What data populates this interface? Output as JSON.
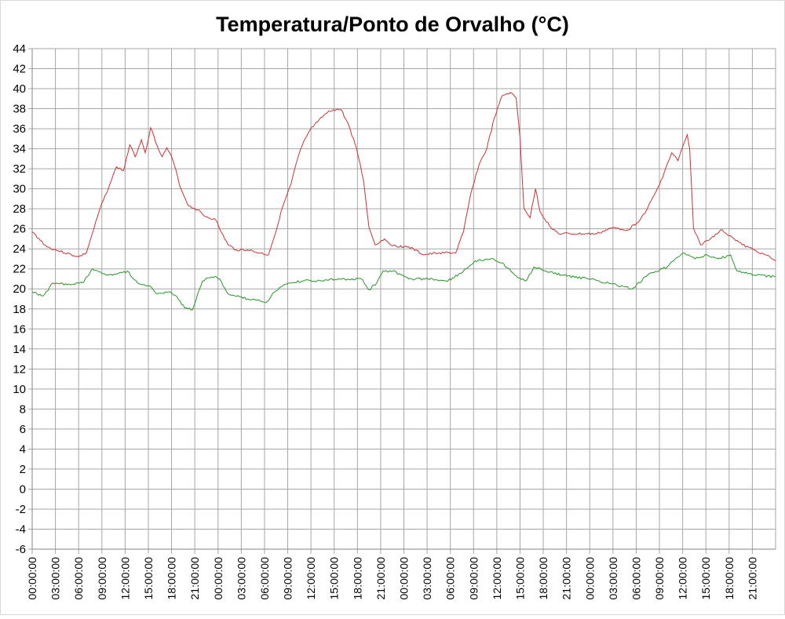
{
  "chart_data": {
    "type": "line",
    "title": "Temperatura/Ponto de Orvalho (°C)",
    "xlabel": "",
    "ylabel": "",
    "ylim": [
      -6,
      44
    ],
    "yticks": [
      "-6",
      "-4",
      "-2",
      "0",
      "2",
      "4",
      "6",
      "8",
      "10",
      "12",
      "14",
      "16",
      "18",
      "20",
      "22",
      "24",
      "26",
      "28",
      "30",
      "32",
      "34",
      "36",
      "38",
      "40",
      "42",
      "44"
    ],
    "xticks": [
      "00:00:00",
      "03:00:00",
      "06:00:00",
      "09:00:00",
      "12:00:00",
      "15:00:00",
      "18:00:00",
      "21:00:00",
      "00:00:00",
      "03:00:00",
      "06:00:00",
      "09:00:00",
      "12:00:00",
      "15:00:00",
      "18:00:00",
      "21:00:00",
      "00:00:00",
      "03:00:00",
      "06:00:00",
      "09:00:00",
      "12:00:00",
      "15:00:00",
      "18:00:00",
      "21:00:00",
      "00:00:00",
      "03:00:00",
      "06:00:00",
      "09:00:00",
      "12:00:00",
      "15:00:00",
      "18:00:00",
      "21:00:00"
    ],
    "xlim": [
      "day 1 00:00",
      "day 5 00:00"
    ],
    "grid": true,
    "legend": "none",
    "series": [
      {
        "color": "#cc3333",
        "points": [
          [
            "1 00:00",
            25.7
          ],
          [
            "1 01:54",
            24.2
          ],
          [
            "1 03:24",
            23.8
          ],
          [
            "1 06:00",
            23.2
          ],
          [
            "1 07:00",
            23.6
          ],
          [
            "1 08:00",
            26.1
          ],
          [
            "1 08:48",
            28.1
          ],
          [
            "1 10:00",
            30.4
          ],
          [
            "1 10:54",
            32.2
          ],
          [
            "1 11:48",
            31.8
          ],
          [
            "1 12:36",
            34.4
          ],
          [
            "1 13:18",
            33.2
          ],
          [
            "1 14:06",
            34.9
          ],
          [
            "1 14:36",
            33.6
          ],
          [
            "1 15:18",
            36.1
          ],
          [
            "1 16:06",
            34.4
          ],
          [
            "1 16:48",
            33.2
          ],
          [
            "1 17:24",
            34.1
          ],
          [
            "1 18:12",
            32.8
          ],
          [
            "1 19:12",
            30.0
          ],
          [
            "1 20:12",
            28.3
          ],
          [
            "1 21:24",
            27.9
          ],
          [
            "1 22:12",
            27.3
          ],
          [
            "1 23:42",
            26.9
          ],
          [
            "2 00:24",
            25.7
          ],
          [
            "2 01:18",
            24.4
          ],
          [
            "2 02:18",
            23.9
          ],
          [
            "2 03:48",
            23.9
          ],
          [
            "2 05:18",
            23.6
          ],
          [
            "2 06:30",
            23.4
          ],
          [
            "2 07:18",
            25.3
          ],
          [
            "2 08:18",
            28.1
          ],
          [
            "2 09:24",
            30.4
          ],
          [
            "2 10:12",
            32.8
          ],
          [
            "2 10:54",
            34.4
          ],
          [
            "2 11:54",
            35.9
          ],
          [
            "2 12:54",
            36.7
          ],
          [
            "2 13:54",
            37.5
          ],
          [
            "2 14:54",
            37.9
          ],
          [
            "2 15:54",
            37.9
          ],
          [
            "2 16:54",
            36.3
          ],
          [
            "2 17:54",
            34.0
          ],
          [
            "2 18:48",
            30.8
          ],
          [
            "2 19:30",
            26.1
          ],
          [
            "2 20:18",
            24.4
          ],
          [
            "2 21:30",
            25.0
          ],
          [
            "2 22:36",
            24.3
          ],
          [
            "3 00:36",
            24.2
          ],
          [
            "3 02:36",
            23.4
          ],
          [
            "3 04:36",
            23.6
          ],
          [
            "3 06:42",
            23.6
          ],
          [
            "3 07:42",
            25.7
          ],
          [
            "3 08:42",
            29.7
          ],
          [
            "3 09:42",
            32.4
          ],
          [
            "3 10:42",
            34.0
          ],
          [
            "3 11:42",
            37.1
          ],
          [
            "3 12:42",
            39.3
          ],
          [
            "3 13:42",
            39.6
          ],
          [
            "3 14:30",
            39.1
          ],
          [
            "3 15:00",
            35.1
          ],
          [
            "3 15:30",
            28.1
          ],
          [
            "3 16:18",
            27.1
          ],
          [
            "3 17:00",
            30.0
          ],
          [
            "3 17:36",
            27.7
          ],
          [
            "3 18:48",
            26.3
          ],
          [
            "3 20:00",
            25.5
          ],
          [
            "3 21:54",
            25.5
          ],
          [
            "4 00:54",
            25.5
          ],
          [
            "4 02:54",
            26.1
          ],
          [
            "4 05:00",
            25.9
          ],
          [
            "4 06:30",
            26.9
          ],
          [
            "4 07:30",
            28.1
          ],
          [
            "4 09:00",
            30.4
          ],
          [
            "4 10:36",
            33.6
          ],
          [
            "4 11:24",
            32.8
          ],
          [
            "4 12:06",
            34.4
          ],
          [
            "4 12:36",
            35.4
          ],
          [
            "4 12:54",
            34.0
          ],
          [
            "4 13:24",
            26.1
          ],
          [
            "4 14:18",
            24.4
          ],
          [
            "4 15:36",
            25.0
          ],
          [
            "4 16:54",
            25.9
          ],
          [
            "4 18:12",
            25.3
          ],
          [
            "4 19:42",
            24.4
          ],
          [
            "4 21:12",
            23.9
          ],
          [
            "4 22:42",
            23.4
          ],
          [
            "5 00:00",
            22.8
          ]
        ]
      },
      {
        "color": "#229922",
        "points": [
          [
            "1 00:00",
            19.7
          ],
          [
            "1 01:24",
            19.3
          ],
          [
            "1 02:42",
            20.6
          ],
          [
            "1 04:30",
            20.4
          ],
          [
            "1 06:30",
            20.6
          ],
          [
            "1 07:48",
            22.0
          ],
          [
            "1 09:30",
            21.4
          ],
          [
            "1 11:36",
            21.6
          ],
          [
            "1 12:18",
            21.8
          ],
          [
            "1 13:36",
            20.6
          ],
          [
            "1 15:06",
            20.3
          ],
          [
            "1 16:06",
            19.5
          ],
          [
            "1 17:36",
            19.7
          ],
          [
            "1 18:42",
            19.2
          ],
          [
            "1 19:42",
            18.1
          ],
          [
            "1 20:42",
            17.9
          ],
          [
            "1 22:00",
            20.8
          ],
          [
            "1 23:12",
            21.2
          ],
          [
            "2 00:12",
            21.0
          ],
          [
            "2 01:18",
            19.5
          ],
          [
            "2 02:48",
            19.2
          ],
          [
            "2 04:18",
            18.9
          ],
          [
            "2 06:18",
            18.7
          ],
          [
            "2 07:18",
            19.7
          ],
          [
            "2 08:54",
            20.5
          ],
          [
            "2 10:54",
            20.8
          ],
          [
            "2 13:24",
            20.8
          ],
          [
            "2 15:30",
            21.0
          ],
          [
            "2 18:30",
            21.0
          ],
          [
            "2 19:30",
            19.9
          ],
          [
            "2 20:30",
            20.6
          ],
          [
            "2 21:18",
            21.8
          ],
          [
            "2 22:36",
            21.8
          ],
          [
            "3 00:36",
            21.0
          ],
          [
            "3 03:06",
            21.0
          ],
          [
            "3 05:42",
            20.8
          ],
          [
            "3 07:42",
            21.8
          ],
          [
            "3 09:12",
            22.8
          ],
          [
            "3 11:12",
            23.0
          ],
          [
            "3 12:42",
            22.6
          ],
          [
            "3 14:18",
            21.4
          ],
          [
            "3 15:48",
            20.8
          ],
          [
            "3 16:48",
            22.2
          ],
          [
            "3 18:18",
            21.8
          ],
          [
            "3 20:24",
            21.4
          ],
          [
            "3 23:54",
            21.0
          ],
          [
            "4 02:54",
            20.5
          ],
          [
            "4 05:30",
            20.0
          ],
          [
            "4 07:30",
            21.4
          ],
          [
            "4 10:00",
            22.2
          ],
          [
            "4 12:06",
            23.6
          ],
          [
            "4 13:36",
            23.0
          ],
          [
            "4 15:06",
            23.4
          ],
          [
            "4 16:36",
            23.0
          ],
          [
            "4 18:12",
            23.4
          ],
          [
            "4 19:00",
            21.8
          ],
          [
            "4 21:12",
            21.4
          ],
          [
            "5 00:00",
            21.2
          ]
        ]
      }
    ]
  }
}
